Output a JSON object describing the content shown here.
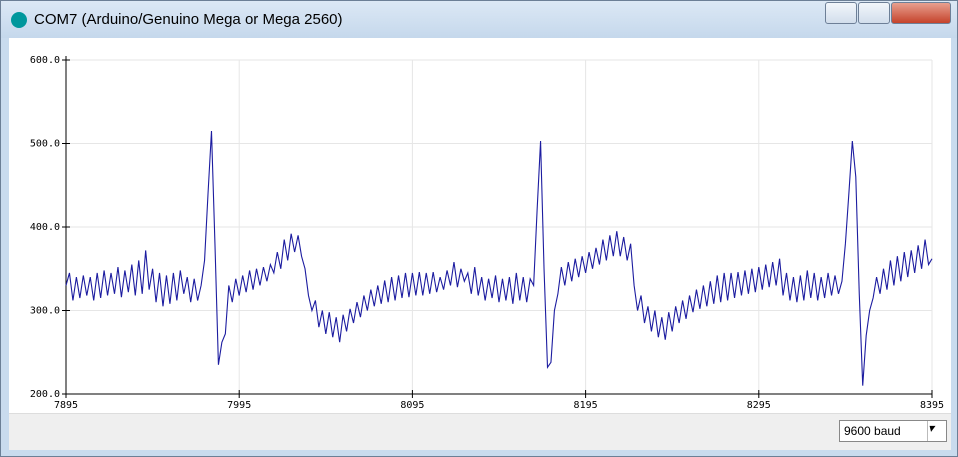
{
  "window": {
    "title": "COM7 (Arduino/Genuino Mega or Mega 2560)"
  },
  "chart_data": {
    "type": "line",
    "x": [
      7895,
      7897,
      7899,
      7901,
      7903,
      7905,
      7907,
      7909,
      7911,
      7913,
      7915,
      7917,
      7919,
      7921,
      7923,
      7925,
      7927,
      7929,
      7931,
      7933,
      7935,
      7937,
      7939,
      7941,
      7943,
      7945,
      7947,
      7949,
      7951,
      7953,
      7955,
      7957,
      7959,
      7961,
      7963,
      7965,
      7967,
      7969,
      7971,
      7973,
      7975,
      7977,
      7979,
      7981,
      7983,
      7985,
      7987,
      7989,
      7991,
      7993,
      7995,
      7997,
      7999,
      8001,
      8003,
      8005,
      8007,
      8009,
      8011,
      8013,
      8015,
      8017,
      8019,
      8021,
      8023,
      8025,
      8027,
      8029,
      8031,
      8033,
      8035,
      8037,
      8039,
      8041,
      8043,
      8045,
      8047,
      8049,
      8051,
      8053,
      8055,
      8057,
      8059,
      8061,
      8063,
      8065,
      8067,
      8069,
      8071,
      8073,
      8075,
      8077,
      8079,
      8081,
      8083,
      8085,
      8087,
      8089,
      8091,
      8093,
      8095,
      8097,
      8099,
      8101,
      8103,
      8105,
      8107,
      8109,
      8111,
      8113,
      8115,
      8117,
      8119,
      8121,
      8123,
      8125,
      8127,
      8129,
      8131,
      8133,
      8135,
      8137,
      8139,
      8141,
      8143,
      8145,
      8147,
      8149,
      8151,
      8153,
      8155,
      8157,
      8159,
      8161,
      8163,
      8165,
      8167,
      8169,
      8171,
      8173,
      8175,
      8177,
      8179,
      8181,
      8183,
      8185,
      8187,
      8189,
      8191,
      8193,
      8195,
      8197,
      8199,
      8201,
      8203,
      8205,
      8207,
      8209,
      8211,
      8213,
      8215,
      8217,
      8219,
      8221,
      8223,
      8225,
      8227,
      8229,
      8231,
      8233,
      8235,
      8237,
      8239,
      8241,
      8243,
      8245,
      8247,
      8249,
      8251,
      8253,
      8255,
      8257,
      8259,
      8261,
      8263,
      8265,
      8267,
      8269,
      8271,
      8273,
      8275,
      8277,
      8279,
      8281,
      8283,
      8285,
      8287,
      8289,
      8291,
      8293,
      8295,
      8297,
      8299,
      8301,
      8303,
      8305,
      8307,
      8309,
      8311,
      8313,
      8315,
      8317,
      8319,
      8321,
      8323,
      8325,
      8327,
      8329,
      8331,
      8333,
      8335,
      8337,
      8339,
      8341,
      8343,
      8345,
      8347,
      8349,
      8351,
      8353,
      8355,
      8357,
      8359,
      8361,
      8363,
      8365,
      8367,
      8369,
      8371,
      8373,
      8375,
      8377,
      8379,
      8381,
      8383,
      8385,
      8387,
      8389,
      8391,
      8393,
      8395
    ],
    "series": [
      {
        "color": "#1c1ca0",
        "values": [
          330,
          345,
          312,
          340,
          315,
          342,
          318,
          340,
          312,
          345,
          315,
          348,
          318,
          345,
          320,
          352,
          316,
          348,
          322,
          355,
          318,
          360,
          320,
          372,
          325,
          350,
          310,
          345,
          305,
          342,
          308,
          345,
          312,
          348,
          320,
          340,
          310,
          338,
          312,
          330,
          360,
          440,
          515,
          380,
          235,
          262,
          272,
          330,
          310,
          338,
          318,
          342,
          322,
          348,
          325,
          350,
          330,
          352,
          335,
          355,
          345,
          370,
          350,
          385,
          360,
          392,
          370,
          390,
          365,
          350,
          318,
          300,
          312,
          280,
          300,
          272,
          298,
          268,
          292,
          262,
          295,
          275,
          302,
          285,
          310,
          292,
          318,
          300,
          325,
          305,
          330,
          308,
          336,
          310,
          340,
          312,
          342,
          315,
          345,
          316,
          345,
          318,
          346,
          318,
          345,
          320,
          346,
          322,
          340,
          325,
          348,
          330,
          358,
          328,
          350,
          335,
          345,
          320,
          352,
          318,
          340,
          312,
          338,
          315,
          342,
          310,
          338,
          312,
          340,
          308,
          345,
          312,
          340,
          310,
          338,
          330,
          420,
          503,
          350,
          232,
          238,
          300,
          320,
          352,
          330,
          358,
          335,
          362,
          340,
          365,
          345,
          370,
          350,
          375,
          355,
          385,
          360,
          390,
          365,
          395,
          365,
          388,
          360,
          380,
          330,
          300,
          318,
          285,
          305,
          275,
          300,
          268,
          292,
          265,
          298,
          275,
          305,
          285,
          312,
          290,
          318,
          298,
          325,
          302,
          330,
          305,
          335,
          308,
          342,
          310,
          345,
          312,
          345,
          315,
          346,
          318,
          348,
          320,
          350,
          322,
          352,
          325,
          355,
          328,
          358,
          330,
          362,
          318,
          345,
          312,
          340,
          310,
          342,
          312,
          348,
          315,
          345,
          312,
          340,
          315,
          345,
          318,
          342,
          320,
          335,
          380,
          440,
          503,
          460,
          320,
          210,
          270,
          300,
          315,
          340,
          320,
          350,
          325,
          360,
          330,
          365,
          335,
          370,
          340,
          372,
          345,
          378,
          350,
          385,
          355,
          362
        ]
      }
    ],
    "xlim": [
      7895,
      8395
    ],
    "ylim": [
      200,
      600
    ],
    "xticks": [
      7895,
      7995,
      8095,
      8195,
      8295,
      8395
    ],
    "yticks": [
      {
        "value": 200,
        "label": "200.0"
      },
      {
        "value": 300,
        "label": "300.0"
      },
      {
        "value": 400,
        "label": "400.0"
      },
      {
        "value": 500,
        "label": "500.0"
      },
      {
        "value": 600,
        "label": "600.0"
      }
    ],
    "grid": true
  },
  "baud": {
    "selected": "9600 baud"
  }
}
